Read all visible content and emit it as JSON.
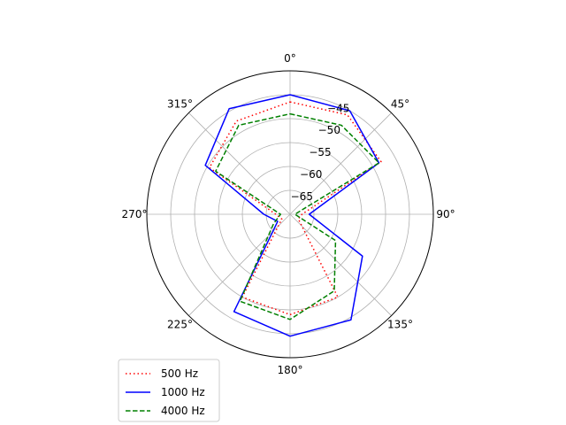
{
  "chart_data": {
    "type": "line",
    "projection": "polar",
    "theta_zero": "N",
    "theta_direction": "clockwise",
    "theta_ticks": [
      "0°",
      "45°",
      "90°",
      "135°",
      "180°",
      "225°",
      "270°",
      "315°"
    ],
    "r_ticks": [
      -65,
      -60,
      -55,
      -50,
      -45
    ],
    "r_tick_labels": [
      "−65",
      "−60",
      "−55",
      "−50",
      "−45"
    ],
    "rlim": [
      -70,
      -40
    ],
    "grid": true,
    "legend_position": "lower-left",
    "angles_deg": [
      0,
      30,
      60,
      90,
      120,
      150,
      180,
      210,
      240,
      270,
      300,
      330,
      360
    ],
    "series": [
      {
        "name": "500 Hz",
        "color": "#ff0000",
        "dash": "dotted",
        "values": [
          -46.5,
          -46.0,
          -48.0,
          -67.5,
          -68.0,
          -50.0,
          -49.0,
          -50.0,
          -68.0,
          -67.0,
          -50.5,
          -47.5,
          -46.5
        ]
      },
      {
        "name": "1000 Hz",
        "color": "#0000ff",
        "dash": "solid",
        "values": [
          -45.0,
          -45.0,
          -48.5,
          -66.0,
          -52.5,
          -44.5,
          -44.5,
          -46.5,
          -67.0,
          -64.5,
          -49.5,
          -44.5,
          -45.0
        ]
      },
      {
        "name": "4000 Hz",
        "color": "#008000",
        "dash": "dashed",
        "values": [
          -49.0,
          -48.5,
          -48.5,
          -69.0,
          -59.0,
          -51.5,
          -48.0,
          -49.0,
          -66.0,
          -68.0,
          -52.0,
          -48.5,
          -49.0
        ]
      }
    ]
  }
}
